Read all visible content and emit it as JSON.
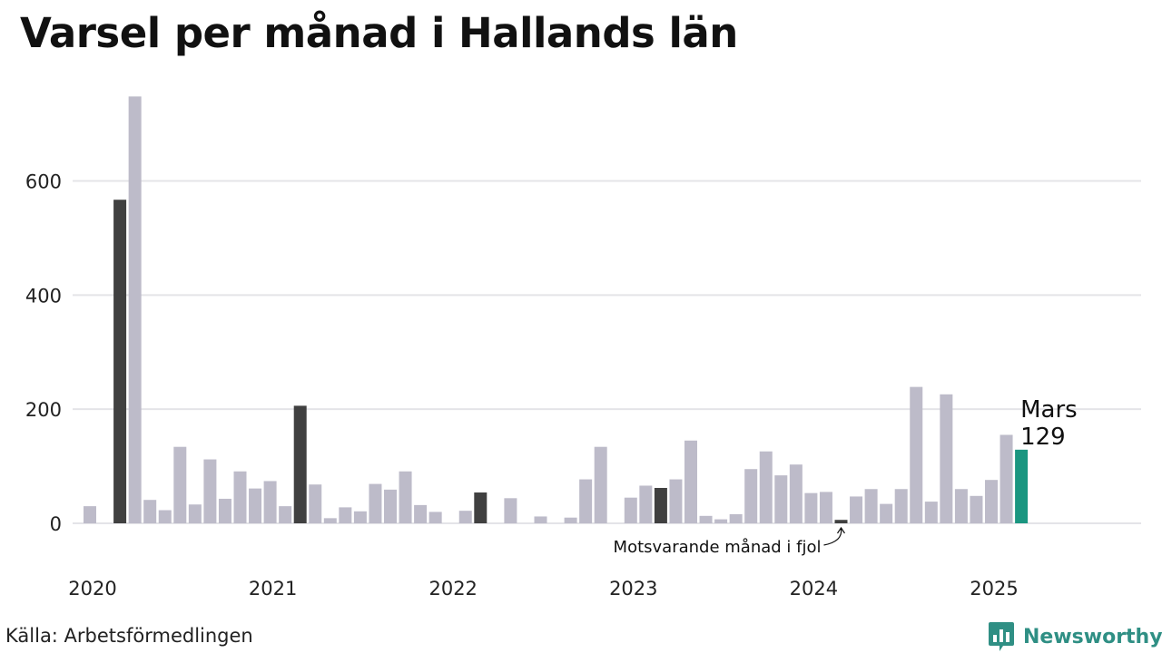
{
  "title": "Varsel per månad i Hallands län",
  "source": "Källa: Arbetsförmedlingen",
  "brand": {
    "name": "Newsworthy",
    "logo_icon": "bar-chart-bubble-icon"
  },
  "colors": {
    "bar": "#bdbbc9",
    "same_month": "#404040",
    "current": "#1a9680",
    "grid": "#e4e4e8",
    "brand": "#2f8f84"
  },
  "chart_data": {
    "type": "bar",
    "title": "Varsel per månad i Hallands län",
    "xlabel": "",
    "ylabel": "",
    "ylim": [
      0,
      750
    ],
    "yticks": [
      0,
      200,
      400,
      600
    ],
    "xtick_labels": [
      "2020",
      "2021",
      "2022",
      "2023",
      "2024",
      "2025"
    ],
    "grid": true,
    "categories": [
      "2020-01",
      "2020-02",
      "2020-03",
      "2020-04",
      "2020-05",
      "2020-06",
      "2020-07",
      "2020-08",
      "2020-09",
      "2020-10",
      "2020-11",
      "2020-12",
      "2021-01",
      "2021-02",
      "2021-03",
      "2021-04",
      "2021-05",
      "2021-06",
      "2021-07",
      "2021-08",
      "2021-09",
      "2021-10",
      "2021-11",
      "2021-12",
      "2022-01",
      "2022-02",
      "2022-03",
      "2022-04",
      "2022-05",
      "2022-06",
      "2022-07",
      "2022-08",
      "2022-09",
      "2022-10",
      "2022-11",
      "2022-12",
      "2023-01",
      "2023-02",
      "2023-03",
      "2023-04",
      "2023-05",
      "2023-06",
      "2023-07",
      "2023-08",
      "2023-09",
      "2023-10",
      "2023-11",
      "2023-12",
      "2024-01",
      "2024-02",
      "2024-03",
      "2024-04",
      "2024-05",
      "2024-06",
      "2024-07",
      "2024-08",
      "2024-09",
      "2024-10",
      "2024-11",
      "2024-12",
      "2025-01",
      "2025-02",
      "2025-03"
    ],
    "values": [
      30,
      0,
      567,
      748,
      41,
      23,
      134,
      33,
      112,
      43,
      91,
      61,
      74,
      30,
      206,
      68,
      9,
      28,
      21,
      69,
      59,
      91,
      32,
      20,
      0,
      22,
      54,
      0,
      44,
      0,
      12,
      0,
      10,
      77,
      134,
      0,
      45,
      66,
      62,
      77,
      145,
      13,
      7,
      16,
      95,
      126,
      84,
      103,
      53,
      55,
      6,
      47,
      60,
      34,
      60,
      239,
      38,
      226,
      60,
      48,
      76,
      155,
      129
    ],
    "highlight_same_month": [
      "2020-03",
      "2021-03",
      "2022-03",
      "2023-03",
      "2024-03"
    ],
    "highlight_current": "2025-03",
    "annotations": [
      {
        "text": "Motsvarande månad i fjol",
        "target": "2024-03"
      },
      {
        "text": "Mars",
        "target": "2025-03"
      },
      {
        "text": "129",
        "target": "2025-03"
      }
    ]
  }
}
